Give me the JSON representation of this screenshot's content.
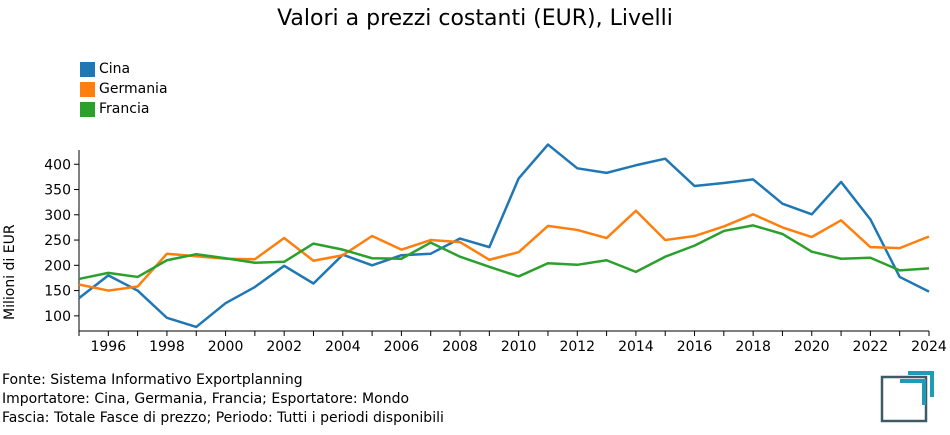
{
  "chart_data": {
    "type": "line",
    "title": "Valori a prezzi costanti (EUR), Livelli",
    "ylabel": "Milioni di EUR",
    "xlabel": "",
    "x": [
      1995,
      1996,
      1997,
      1998,
      1999,
      2000,
      2001,
      2002,
      2003,
      2004,
      2005,
      2006,
      2007,
      2008,
      2009,
      2010,
      2011,
      2012,
      2013,
      2014,
      2015,
      2016,
      2017,
      2018,
      2019,
      2020,
      2021,
      2022,
      2023,
      2024
    ],
    "xlim": [
      1995,
      2024
    ],
    "ylim": [
      70,
      450
    ],
    "xticks": [
      1996,
      1998,
      2000,
      2002,
      2004,
      2006,
      2008,
      2010,
      2012,
      2014,
      2016,
      2018,
      2020,
      2022,
      2024
    ],
    "yticks": [
      100,
      150,
      200,
      250,
      300,
      350,
      400
    ],
    "grid": false,
    "legend_position": "top-left",
    "series": [
      {
        "name": "Cina",
        "color": "#1f77b4",
        "values": [
          135,
          180,
          150,
          96,
          78,
          125,
          157,
          199,
          164,
          221,
          200,
          220,
          223,
          253,
          236,
          372,
          439,
          392,
          383,
          398,
          411,
          357,
          363,
          370,
          322,
          301,
          365,
          291,
          177,
          148
        ]
      },
      {
        "name": "Germania",
        "color": "#ff7f0e",
        "values": [
          162,
          150,
          158,
          223,
          218,
          213,
          212,
          254,
          209,
          220,
          258,
          231,
          250,
          246,
          211,
          226,
          278,
          270,
          254,
          308,
          250,
          258,
          277,
          301,
          275,
          256,
          289,
          236,
          234,
          257
        ]
      },
      {
        "name": "Francia",
        "color": "#2ca02c",
        "values": [
          173,
          185,
          177,
          210,
          222,
          214,
          205,
          207,
          243,
          231,
          214,
          213,
          245,
          217,
          197,
          178,
          204,
          201,
          210,
          187,
          217,
          239,
          268,
          279,
          262,
          227,
          213,
          215,
          190,
          194
        ]
      }
    ]
  },
  "footer": {
    "line1": "Fonte: Sistema Informativo Exportplanning",
    "line2": "Importatore: Cina, Germania, Francia; Esportatore: Mondo",
    "line3": "Fascia: Totale Fasce di prezzo; Periodo: Tutti i periodi disponibili"
  },
  "logo_icon": "exportplanning-logo-icon"
}
